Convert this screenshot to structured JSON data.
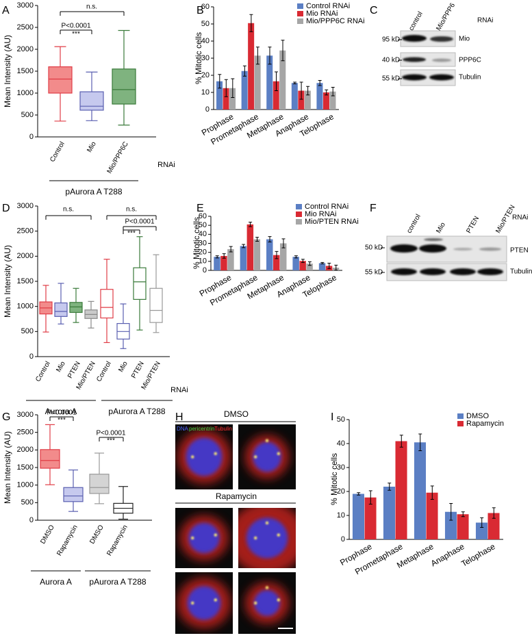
{
  "chart_data": [
    {
      "type": "box",
      "label": "A",
      "y_label": "Mean Intensity (AU)",
      "ylim": [
        0,
        3000
      ],
      "yticks": [
        0,
        500,
        1000,
        1500,
        2000,
        2500,
        3000
      ],
      "boxes": [
        {
          "category": "Control",
          "fill": "#f28b8b",
          "stroke": "#e03c46",
          "whisker_low": 360,
          "q1": 1000,
          "median": 1320,
          "q3": 1600,
          "whisker_high": 2060
        },
        {
          "category": "Mio",
          "fill": "#c6c9ee",
          "stroke": "#5a5fb0",
          "whisker_low": 370,
          "q1": 610,
          "median": 700,
          "q3": 1030,
          "whisker_high": 1480
        },
        {
          "category": "Mio/PPP6C",
          "fill": "#7fb37f",
          "stroke": "#3a7a3a",
          "whisker_low": 270,
          "q1": 750,
          "median": 1080,
          "q3": 1550,
          "whisker_high": 2430
        }
      ],
      "annotations": [
        "n.s.",
        "P<0.0001",
        "***"
      ],
      "axis_note": "RNAi",
      "group_labels": [
        "pAurora A T288"
      ]
    },
    {
      "type": "bar",
      "label": "B",
      "y_label": "% Mitotic cells",
      "ylim": [
        0,
        60
      ],
      "yticks": [
        0,
        10,
        20,
        30,
        40,
        50,
        60
      ],
      "categories": [
        "Prophase",
        "Prometaphase",
        "Metaphase",
        "Anaphase",
        "Telophase"
      ],
      "legend": "top-right",
      "series": [
        {
          "name": "Control RNAi",
          "color": "#5b7fc4",
          "values": [
            16.5,
            22.5,
            31.5,
            15.5,
            15.5
          ],
          "errors": [
            4,
            3,
            5,
            0.5,
            1.5
          ]
        },
        {
          "name": "Mio RNAi",
          "color": "#d92a33",
          "values": [
            12.5,
            50.5,
            16.5,
            11,
            10
          ],
          "errors": [
            5,
            5,
            5.5,
            5,
            1.5
          ]
        },
        {
          "name": "Mio/PPP6C RNAi",
          "color": "#a6a6a6",
          "values": [
            12.5,
            31.5,
            34.5,
            11,
            10.5
          ],
          "errors": [
            5.5,
            5,
            6,
            2.5,
            2.5
          ]
        }
      ]
    },
    {
      "type": "box",
      "label": "D",
      "y_label": "Mean Intensity (AU)",
      "ylim": [
        0,
        3000
      ],
      "yticks": [
        0,
        500,
        1000,
        1500,
        2000,
        2500,
        3000
      ],
      "boxes": [
        {
          "category": "Control",
          "fill": "#f28b8b",
          "stroke": "#e03c46",
          "whisker_low": 490,
          "q1": 850,
          "median": 970,
          "q3": 1090,
          "whisker_high": 1420
        },
        {
          "category": "Mio",
          "fill": "#c6c9ee",
          "stroke": "#5a5fb0",
          "whisker_low": 650,
          "q1": 800,
          "median": 900,
          "q3": 1070,
          "whisker_high": 1460
        },
        {
          "category": "PTEN",
          "fill": "#7fb37f",
          "stroke": "#3a7a3a",
          "whisker_low": 680,
          "q1": 880,
          "median": 990,
          "q3": 1080,
          "whisker_high": 1360
        },
        {
          "category": "Mio/PTEN",
          "fill": "#cacaca",
          "stroke": "#888888",
          "whisker_low": 570,
          "q1": 760,
          "median": 840,
          "q3": 930,
          "whisker_high": 1100
        },
        {
          "category": "Control",
          "fill": "#ffffff",
          "stroke": "#e03c46",
          "whisker_low": 280,
          "q1": 770,
          "median": 980,
          "q3": 1340,
          "whisker_high": 1940
        },
        {
          "category": "Mio",
          "fill": "#ffffff",
          "stroke": "#5a5fb0",
          "whisker_low": 160,
          "q1": 350,
          "median": 500,
          "q3": 660,
          "whisker_high": 1050
        },
        {
          "category": "PTEN",
          "fill": "#ffffff",
          "stroke": "#3a7a3a",
          "whisker_low": 530,
          "q1": 1140,
          "median": 1490,
          "q3": 1770,
          "whisker_high": 2390
        },
        {
          "category": "Mio/PTEN",
          "fill": "#ffffff",
          "stroke": "#999999",
          "whisker_low": 480,
          "q1": 680,
          "median": 920,
          "q3": 1360,
          "whisker_high": 2030
        }
      ],
      "annotations": [
        "n.s.",
        "n.s.",
        "P<0.0001",
        "***"
      ],
      "axis_note": "RNAi",
      "group_labels": [
        "Aurora A",
        "pAurora A T288"
      ]
    },
    {
      "type": "bar",
      "label": "E",
      "y_label": "% Mitotic cells",
      "ylim": [
        0,
        60
      ],
      "yticks": [
        0,
        10,
        20,
        30,
        40,
        50,
        60
      ],
      "categories": [
        "Prophase",
        "Prometaphase",
        "Metaphase",
        "Anaphase",
        "Telophase"
      ],
      "legend": "top-right",
      "series": [
        {
          "name": "Control RNAi",
          "color": "#5b7fc4",
          "values": [
            15,
            27,
            34.5,
            15,
            8
          ],
          "errors": [
            1.2,
            1.8,
            3,
            1.2,
            0.8
          ]
        },
        {
          "name": "Mio RNAi",
          "color": "#d92a33",
          "values": [
            16,
            51,
            17,
            10.5,
            5
          ],
          "errors": [
            2.5,
            2.5,
            4,
            1.8,
            3
          ]
        },
        {
          "name": "Mio/PTEN RNAi",
          "color": "#a6a6a6",
          "values": [
            23.5,
            34.5,
            30,
            7.5,
            3
          ],
          "errors": [
            3,
            2.2,
            5,
            2,
            2.8
          ]
        }
      ]
    },
    {
      "type": "box",
      "label": "G",
      "y_label": "Mean Intensity (AU)",
      "ylim": [
        0,
        3000
      ],
      "yticks": [
        0,
        500,
        1000,
        1500,
        2000,
        2500,
        3000
      ],
      "boxes": [
        {
          "category": "DMSO",
          "fill": "#f28b8b",
          "stroke": "#e03c46",
          "whisker_low": 1010,
          "q1": 1480,
          "median": 1700,
          "q3": 2010,
          "whisker_high": 2720
        },
        {
          "category": "Rapamycin",
          "fill": "#c6c9ee",
          "stroke": "#5a5fb0",
          "whisker_low": 250,
          "q1": 530,
          "median": 690,
          "q3": 930,
          "whisker_high": 1430
        },
        {
          "category": "DMSO",
          "fill": "#d4d4d4",
          "stroke": "#999999",
          "whisker_low": 470,
          "q1": 760,
          "median": 930,
          "q3": 1310,
          "whisker_high": 1910
        },
        {
          "category": "Rapamycin",
          "fill": "#ffffff",
          "stroke": "#222222",
          "whisker_low": 30,
          "q1": 200,
          "median": 340,
          "q3": 480,
          "whisker_high": 960
        }
      ],
      "annotations": [
        "P<0.0001",
        "***",
        "P<0.0001",
        "***"
      ],
      "group_labels": [
        "Aurora A",
        "pAurora A T288"
      ]
    },
    {
      "type": "bar",
      "label": "I",
      "y_label": "% Mitotic cells",
      "ylim": [
        0,
        50
      ],
      "yticks": [
        0,
        10,
        20,
        30,
        40,
        50
      ],
      "categories": [
        "Prophase",
        "Prometaphase",
        "Metaphase",
        "Anaphase",
        "Telophase"
      ],
      "legend": "top-right",
      "series": [
        {
          "name": "DMSO",
          "color": "#5b7fc4",
          "values": [
            19,
            22,
            40.5,
            11.5,
            7
          ],
          "errors": [
            0.5,
            1.5,
            3.5,
            3.5,
            2
          ]
        },
        {
          "name": "Rapamycin",
          "color": "#d92a33",
          "values": [
            17.5,
            41,
            19.5,
            10.5,
            11
          ],
          "errors": [
            2.8,
            2.5,
            2.8,
            1,
            2.2
          ]
        }
      ]
    }
  ],
  "blots": [
    {
      "label": "C",
      "header": "RNAi",
      "lanes": [
        "control",
        "Mio/PPP6"
      ],
      "markers": [
        "95 kD",
        "40 kD",
        "55 kD"
      ],
      "bands": [
        "Mio",
        "PPP6C",
        "Tubulin"
      ]
    },
    {
      "label": "F",
      "header": "RNAi",
      "lanes": [
        "control",
        "Mio",
        "PTEN",
        "Mio/PTEN"
      ],
      "markers": [
        "50 kD",
        "55 kD"
      ],
      "bands": [
        "PTEN",
        "Tubulin"
      ]
    }
  ],
  "microscopy": {
    "label": "H",
    "conditions": [
      "DMSO",
      "Rapamycin"
    ],
    "channels": [
      "DNA",
      "pericentrin",
      "Tubulin"
    ]
  }
}
